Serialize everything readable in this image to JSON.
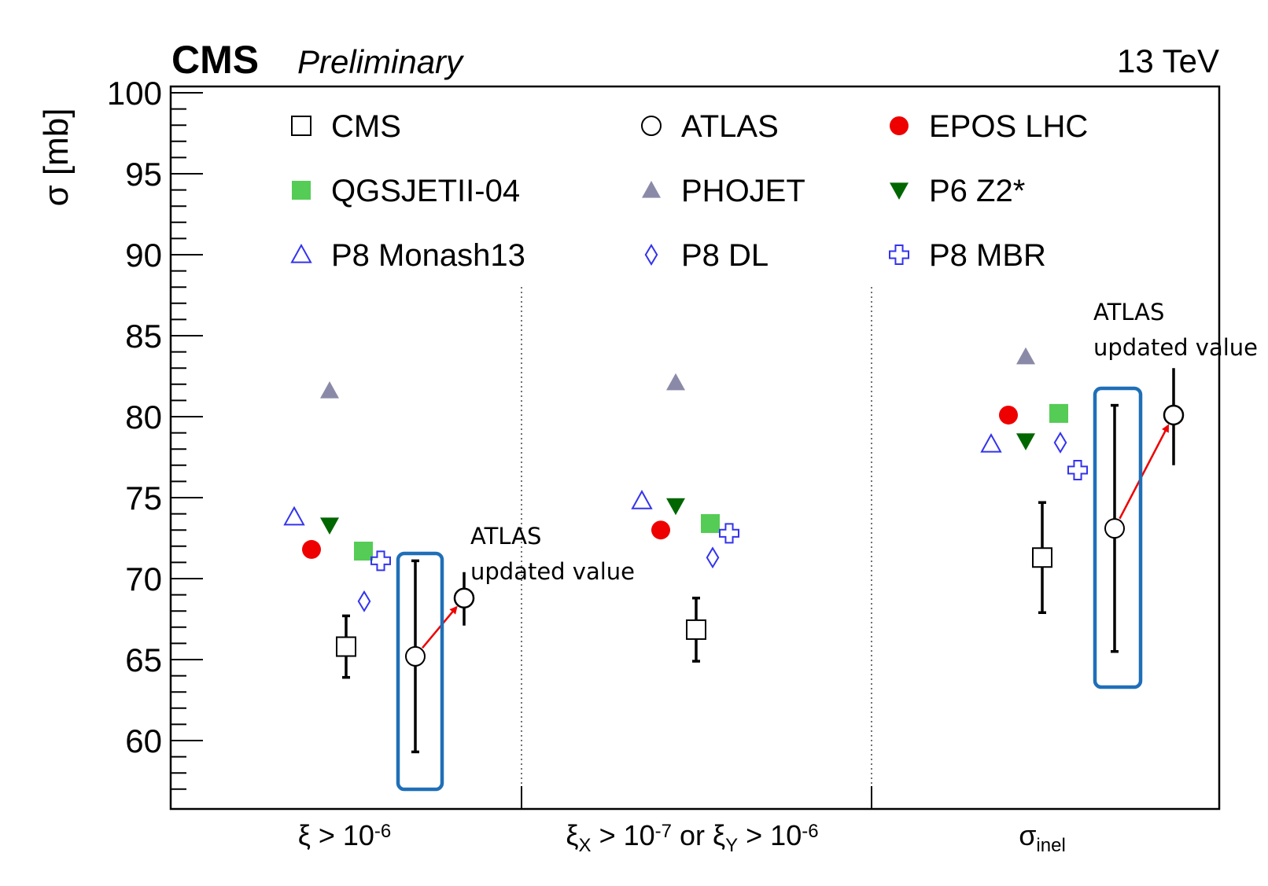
{
  "chart_data": {
    "type": "scatter",
    "header_left_bold": "CMS",
    "header_left_italic": "Preliminary",
    "header_right": "13 TeV",
    "ylabel": "σ [mb]",
    "ylim": [
      57,
      100
    ],
    "yticks": [
      "100",
      "95",
      "90",
      "85",
      "80",
      "75",
      "70",
      "65",
      "60"
    ],
    "grid": false,
    "legend_position": "top",
    "categories": [
      {
        "main": "ξ > 10",
        "sub": "",
        "sup": "-6"
      },
      {
        "main": "ξ",
        "sub": "X",
        "mid": " > 10",
        "sup": "-7",
        "mid2": " or ξ",
        "sub2": "Y",
        "mid3": " > 10",
        "sup2": "-6"
      },
      {
        "main": "σ",
        "sub": "inel",
        "sup": ""
      }
    ],
    "series": [
      {
        "name": "CMS",
        "marker": "open-square",
        "color": "#000000",
        "values": [
          65.8,
          66.85,
          71.3
        ],
        "err_low": [
          63.9,
          64.9,
          67.9
        ],
        "err_high": [
          67.7,
          68.8,
          74.7
        ]
      },
      {
        "name": "ATLAS",
        "marker": "open-circle",
        "color": "#000000",
        "values": [
          65.2,
          null,
          73.1
        ],
        "err_low": [
          59.3,
          null,
          65.5
        ],
        "err_high": [
          71.1,
          null,
          80.7
        ]
      },
      {
        "name": "EPOS LHC",
        "marker": "filled-circle",
        "color": "#ee0000",
        "values": [
          71.8,
          73.0,
          80.1
        ]
      },
      {
        "name": "QGSJETII-04",
        "marker": "filled-square",
        "color": "#55cc55",
        "values": [
          71.7,
          73.4,
          80.2
        ]
      },
      {
        "name": "PHOJET",
        "marker": "filled-triangle-up",
        "color": "#8a8aa8",
        "values": [
          81.6,
          82.1,
          83.7
        ]
      },
      {
        "name": "P6 Z2*",
        "marker": "filled-triangle-down",
        "color": "#006600",
        "values": [
          73.3,
          74.5,
          78.5
        ]
      },
      {
        "name": "P8 Monash13",
        "marker": "open-triangle-up",
        "color": "#3333ee",
        "values": [
          73.8,
          74.8,
          78.3
        ]
      },
      {
        "name": "P8 DL",
        "marker": "open-diamond",
        "color": "#3333ee",
        "values": [
          68.6,
          71.3,
          78.4
        ]
      },
      {
        "name": "P8 MBR",
        "marker": "open-cross",
        "color": "#3333ee",
        "values": [
          71.1,
          72.8,
          76.7
        ]
      }
    ],
    "updated_atlas": [
      {
        "category": 0,
        "value": 68.8,
        "err_low": 67.1,
        "err_high": 70.4
      },
      {
        "category": 2,
        "value": 80.1,
        "err_low": 77.0,
        "err_high": 83.0
      }
    ],
    "annotations": [
      {
        "line1": "ATLAS",
        "line2": "updated value"
      },
      {
        "line1": "ATLAS",
        "line2": "updated value"
      }
    ],
    "colors": {
      "highlight_box": "#1f6fb8",
      "arrow": "#ee0000",
      "axis": "#000000"
    }
  }
}
